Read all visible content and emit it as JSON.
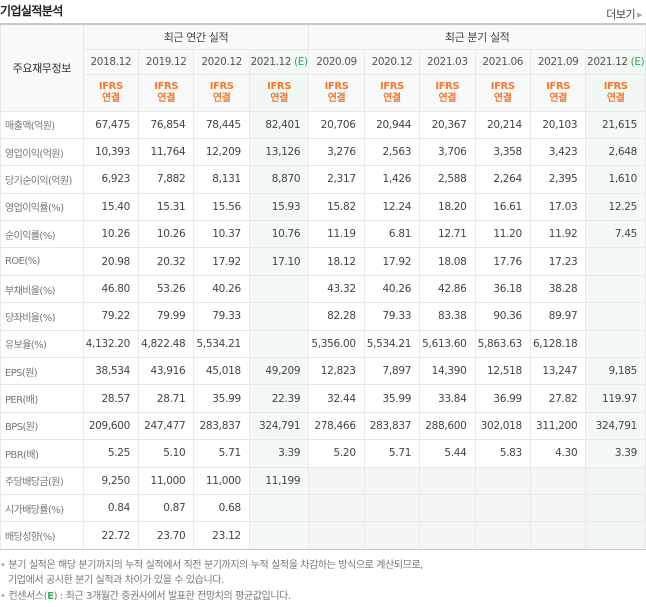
{
  "header": {
    "title": "기업실적분석",
    "more_label": "더보기"
  },
  "table": {
    "label_header": "주요재무정보",
    "groups": {
      "annual": "최근 연간 실적",
      "quarterly": "최근 분기 실적"
    },
    "estimate_mark": "(E)",
    "accounting": {
      "line1": "IFRS",
      "line2": "연결"
    },
    "annual_periods": [
      "2018.12",
      "2019.12",
      "2020.12",
      "2021.12"
    ],
    "quarterly_periods": [
      "2020.09",
      "2020.12",
      "2021.03",
      "2021.06",
      "2021.09",
      "2021.12"
    ],
    "rows": [
      {
        "label": "매출액(억원)",
        "annual": [
          "67,475",
          "76,854",
          "78,445",
          "82,401"
        ],
        "quarterly": [
          "20,706",
          "20,944",
          "20,367",
          "20,214",
          "20,103",
          "21,615"
        ]
      },
      {
        "label": "영업이익(억원)",
        "annual": [
          "10,393",
          "11,764",
          "12,209",
          "13,126"
        ],
        "quarterly": [
          "3,276",
          "2,563",
          "3,706",
          "3,358",
          "3,423",
          "2,648"
        ]
      },
      {
        "label": "당기순이익(억원)",
        "annual": [
          "6,923",
          "7,882",
          "8,131",
          "8,870"
        ],
        "quarterly": [
          "2,317",
          "1,426",
          "2,588",
          "2,264",
          "2,395",
          "1,610"
        ]
      },
      {
        "label": "영업이익률(%)",
        "annual": [
          "15.40",
          "15.31",
          "15.56",
          "15.93"
        ],
        "quarterly": [
          "15.82",
          "12.24",
          "18.20",
          "16.61",
          "17.03",
          "12.25"
        ]
      },
      {
        "label": "순이익률(%)",
        "annual": [
          "10.26",
          "10.26",
          "10.37",
          "10.76"
        ],
        "quarterly": [
          "11.19",
          "6.81",
          "12.71",
          "11.20",
          "11.92",
          "7.45"
        ]
      },
      {
        "label": "ROE(%)",
        "annual": [
          "20.98",
          "20.32",
          "17.92",
          "17.10"
        ],
        "quarterly": [
          "18.12",
          "17.92",
          "18.08",
          "17.76",
          "17.23",
          ""
        ]
      },
      {
        "label": "부채비율(%)",
        "annual": [
          "46.80",
          "53.26",
          "40.26",
          ""
        ],
        "quarterly": [
          "43.32",
          "40.26",
          "42.86",
          "36.18",
          "38.28",
          ""
        ]
      },
      {
        "label": "당좌비율(%)",
        "annual": [
          "79.22",
          "79.99",
          "79.33",
          ""
        ],
        "quarterly": [
          "82.28",
          "79.33",
          "83.38",
          "90.36",
          "89.97",
          ""
        ]
      },
      {
        "label": "유보율(%)",
        "annual": [
          "4,132.20",
          "4,822.48",
          "5,534.21",
          ""
        ],
        "quarterly": [
          "5,356.00",
          "5,534.21",
          "5,613.60",
          "5,863.63",
          "6,128.18",
          ""
        ]
      },
      {
        "label": "EPS(원)",
        "annual": [
          "38,534",
          "43,916",
          "45,018",
          "49,209"
        ],
        "quarterly": [
          "12,823",
          "7,897",
          "14,390",
          "12,518",
          "13,247",
          "9,185"
        ]
      },
      {
        "label": "PER(배)",
        "annual": [
          "28.57",
          "28.71",
          "35.99",
          "22.39"
        ],
        "quarterly": [
          "32.44",
          "35.99",
          "33.84",
          "36.99",
          "27.82",
          "119.97"
        ]
      },
      {
        "label": "BPS(원)",
        "annual": [
          "209,600",
          "247,477",
          "283,837",
          "324,791"
        ],
        "quarterly": [
          "278,466",
          "283,837",
          "288,600",
          "302,018",
          "311,200",
          "324,791"
        ]
      },
      {
        "label": "PBR(배)",
        "annual": [
          "5.25",
          "5.10",
          "5.71",
          "3.39"
        ],
        "quarterly": [
          "5.20",
          "5.71",
          "5.44",
          "5.83",
          "4.30",
          "3.39"
        ]
      },
      {
        "label": "주당배당금(원)",
        "annual": [
          "9,250",
          "11,000",
          "11,000",
          "11,199"
        ],
        "quarterly": [
          "",
          "",
          "",
          "",
          "",
          ""
        ]
      },
      {
        "label": "시가배당률(%)",
        "annual": [
          "0.84",
          "0.87",
          "0.68",
          ""
        ],
        "quarterly": [
          "",
          "",
          "",
          "",
          "",
          ""
        ]
      },
      {
        "label": "배당성향(%)",
        "annual": [
          "22.72",
          "23.70",
          "23.12",
          ""
        ],
        "quarterly": [
          "",
          "",
          "",
          "",
          "",
          ""
        ]
      }
    ]
  },
  "notes": {
    "note1_line1": "분기 실적은 해당 분기까지의 누적 실적에서 직전 분기까지의 누적 실적을 차감하는 방식으로 계산되므로,",
    "note1_line2": "기업에서 공시한 분기 실적과 차이가 있을 수 있습니다.",
    "note2_prefix": "컨센서스(",
    "note2_mark": "E",
    "note2_suffix": ") : 최근 3개월간 증권사에서 발표한 전망치의 평균값입니다."
  },
  "colors": {
    "accounting_label": "#f07a32",
    "estimate_green": "#3aa758",
    "estimate_column_bg": "#f3f9f4"
  }
}
